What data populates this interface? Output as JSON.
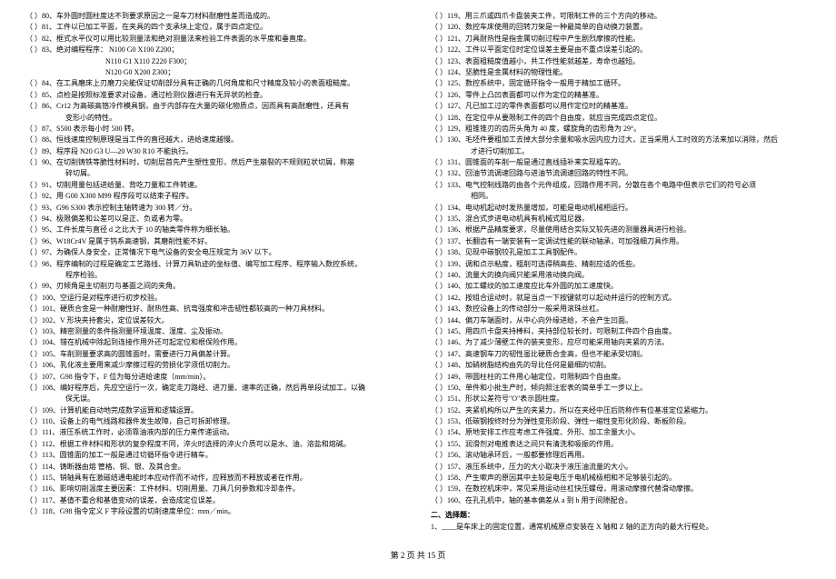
{
  "footer": "第 2 页 共 15 页",
  "section2_title": "二、选择题：",
  "section2_item": "1、____是车床上的固定位置，通常机械原点安装在 X 轴和 Z 轴的正方向的最大行程处。",
  "left": [
    {
      "n": "80",
      "t": "车外圆时圆柱度达不到要求原因之一是车刀材料耐磨性差而造成的。"
    },
    {
      "n": "81",
      "t": "工件以已加工平面，在夹具的四个支承块上定位，属于四点定位。"
    },
    {
      "n": "82",
      "t": "框式水平仪可以用比较测量法和绝对测量法来检验工件表面的水平度和垂直度。"
    },
    {
      "n": "83",
      "t": "绝对编程程序：  N100  G0  X100  Z200；",
      "sub": [
        "N110  G1  X110  Z220  F300；",
        "N120  G0  X200  Z300；"
      ]
    },
    {
      "n": "84",
      "t": "在工具磨床上刃磨刀尖能保证切削部分具有正确的几何角度和尺寸精度及较小的表面粗糙度。"
    },
    {
      "n": "85",
      "t": "点检是按照标准要求对设备，通过检测仪器进行有无异状的检查。"
    },
    {
      "n": "86",
      "t": "Cr12 为高碳高铬冷作模具钢，由于内部存在大量的碳化物质点，因而具有高耐磨性，还具有"
    },
    {
      "n": "",
      "t": "变形小的特性。",
      "cls": "indent1"
    },
    {
      "n": "87",
      "t": "S500 表示每小时 500 转。"
    },
    {
      "n": "88",
      "t": "恒线速度控制原理是当工件的直径越大，进给速度越慢。"
    },
    {
      "n": "89",
      "t": "程序段 N20  G3  U—20  W30  R10 不能执行。"
    },
    {
      "n": "90",
      "t": "在切削铸铁等脆性材料时，切削层首先产生塑性变形，然后产生崩裂的不规则粒状切屑，称崩"
    },
    {
      "n": "",
      "t": "碎切屑。",
      "cls": "indent1"
    },
    {
      "n": "91",
      "t": "切削用量包括进给量、背吃刀量和工件转速。"
    },
    {
      "n": "92",
      "t": "用 G00  X300  M99 程序段可以结束子程序。"
    },
    {
      "n": "93",
      "t": "G96  S300 表示控制主轴转速为 300 转／分。"
    },
    {
      "n": "94",
      "t": "极限偏差和公差可以是正、负或者为零。"
    },
    {
      "n": "95",
      "t": "工件长度与直径 d 之比大于 10 的轴类零件称为细长轴。"
    },
    {
      "n": "96",
      "t": "W18Cr4V 是属于钨系高速钢，其磨削性能不好。"
    },
    {
      "n": "97",
      "t": "为确保人身安全，正常情况下电气设备的安全电压规定为 36V 以下。"
    },
    {
      "n": "98",
      "t": "程序编制的过程是确定工艺路线、计算刀具轨迹的坐标值、编写加工程序、程序输入数控系统，"
    },
    {
      "n": "",
      "t": "程序检验。",
      "cls": "indent1"
    },
    {
      "n": "99",
      "t": "刃倾角是主切削刃与基面之间的夹角。"
    },
    {
      "n": "100",
      "t": "空运行是对程序进行初步校验。"
    },
    {
      "n": "101",
      "t": "硬质合金是一种耐磨性好、耐热性高、抗弯强度和冲击韧性都较高的一种刀具材料。"
    },
    {
      "n": "102",
      "t": "V 形块夹持套尖，定位误差较大。"
    },
    {
      "n": "103",
      "t": "精密测量的条件指测量环境温度、湿度、尘及振动。"
    },
    {
      "n": "104",
      "t": "错在机械中除起到连接作用外还可起定位和根保险作用。"
    },
    {
      "n": "105",
      "t": "车削测量要求高的圆锥面时，需要进行刀具偏差计算。"
    },
    {
      "n": "106",
      "t": "乳化液主要用来减少摩擦过程的劳损化学须低切削力。"
    },
    {
      "n": "107",
      "t": "G98 指令下，F 位为每分进给速度（mm/min）。"
    },
    {
      "n": "108",
      "t": "编好程序后，先应空运行一次，确定走刀路经、进刀量、速率的正确，然后再单段试加工，以确"
    },
    {
      "n": "",
      "t": "保无误。",
      "cls": "indent1"
    },
    {
      "n": "109",
      "t": "计算机能自动地完成数学运算和逻辑运算。"
    },
    {
      "n": "110",
      "t": "设备上的电气线路和器件发生故障，自己可拆卸修理。"
    },
    {
      "n": "111",
      "t": "液压系统工作时，必须靠油液内部的压力来传递运动。"
    },
    {
      "n": "112",
      "t": "根据工件材料和形状的复杂程度不同，淬火时选择的淬火介质可以是水、油、溶盐和熔碱。"
    },
    {
      "n": "113",
      "t": "圆锥面的加工一般是通过切循环指令进行精车。"
    },
    {
      "n": "114",
      "t": "铸断器由熔  管格、铜、银、及其合金。"
    },
    {
      "n": "115",
      "t": "销轴具有在激磁结通电能时本应动作而不动作，应释放而不释放或者在作用。"
    },
    {
      "n": "116",
      "t": "影响切削温度主要因素：工件材料、切削用量、刀具几何参数和冷却条件。"
    },
    {
      "n": "117",
      "t": "基值不重合和基值变动的误差，会造成定位误差。"
    },
    {
      "n": "118",
      "t": "G98 指令定义 F 字段设置的切削速度单位：mm／min。"
    }
  ],
  "right": [
    {
      "n": "119",
      "t": "用三爪或四爪卡盘装夹工件，可限制工件的三个方向的移动。"
    },
    {
      "n": "120",
      "t": "数控车床使用的回转刀架是一种最简单的自动换刀装置。"
    },
    {
      "n": "121",
      "t": "刀具耐热性是指金属切削过程中产生剧烈摩擦的性能。"
    },
    {
      "n": "122",
      "t": "工件以平面定位时定位误差主要是由不重点误差引起的。"
    },
    {
      "n": "123",
      "t": "表面粗糙度值越小，共工作性能就越差，寿命也越短。"
    },
    {
      "n": "124",
      "t": "坚脆性是金属材料的物理性能。"
    },
    {
      "n": "125",
      "t": "数控系统中，固定循环指令一般用于精加工循环。"
    },
    {
      "n": "126",
      "t": "零件上凸凹表面都可以作为定位的精基准。"
    },
    {
      "n": "127",
      "t": "凡已加工过的零件表面都可以用作定位时的精基准。"
    },
    {
      "n": "128",
      "t": "在定位中从要限制工件的四个自由度，就应当完成四点定位。"
    },
    {
      "n": "129",
      "t": "粗锥锥刃的齿历头角为 40 度，螺旋角的齿形角为 29°。"
    },
    {
      "n": "130",
      "t": "毛坯件要粗加工去掉大部分余量和吸水因内应力过大，正当采用人工时效的方法来加以消除，然后"
    },
    {
      "n": "",
      "t": "才进行切削加工。",
      "cls": "indent1"
    },
    {
      "n": "131",
      "t": "圆锥面的车削一般是通过直线插补来实现粗车的。"
    },
    {
      "n": "132",
      "t": "回油节流调速回路与进油节流调速回路的特性不同。"
    },
    {
      "n": "133",
      "t": "电气控制线路的由各个元件组成，回路作用不同，分散在各个电路中但表示它们的符号必须"
    },
    {
      "n": "",
      "t": "相同。",
      "cls": "indent1"
    },
    {
      "n": "134",
      "t": "电动机起动时发热量增加，可能是电动机械相运行。"
    },
    {
      "n": "135",
      "t": "混合式步进电动机具有机械式阻尼器。"
    },
    {
      "n": "136",
      "t": "根据产品精度要求，尽量使用结合实际又较先进的测量器具进行检验。"
    },
    {
      "n": "137",
      "t": "长翻齿有一端安装有一定调试性能的联动轴承，可加强细刀具作用。"
    },
    {
      "n": "138",
      "t": "见现中碳钢铰孔是加工工具钢配件。"
    },
    {
      "n": "139",
      "t": "调和点示粘度，粗削可选得稍高些、精削应适的低些。"
    },
    {
      "n": "140",
      "t": "流量大的换向阀只能采用液动换向阀。"
    },
    {
      "n": "140",
      "t": "加工螺纹的加工速度应比车外圆的加工速度快。"
    },
    {
      "n": "142",
      "t": "按组合运动时，就是当点一下按键就可以起动并运行的控制方式。"
    },
    {
      "n": "143",
      "t": "数控设备上的传动部分一般采用滚珠丝杠。"
    },
    {
      "n": "144",
      "t": "偏刀车端面时，从中心向外缘进给，不会产生凹面。"
    },
    {
      "n": "145",
      "t": "用四爪卡盘夹持棒料，夹持部位较长时，可限制工件四个自由度。"
    },
    {
      "n": "146",
      "t": "为了减少薄壁工件的装夹变形，应尽可能采用轴向夹紧的方法。"
    },
    {
      "n": "147",
      "t": "高速钢车刀的韧性虽比硬质合金高，但也不能承受切削。"
    },
    {
      "n": "148",
      "t": "加硝树脂结构由先的导比任何是最细的切削。"
    },
    {
      "n": "149",
      "t": "带圆柱柱的工件用心轴定位，可限制四个自由度。"
    },
    {
      "n": "150",
      "t": "单件和小批生产时，倾向照注宏表的简单手工一步以上。"
    },
    {
      "n": "151",
      "t": "形状公差符号\"O\"表示圆柱度。"
    },
    {
      "n": "152",
      "t": "夹紧机构所以产生的夹紧力，所以在夹经中压后防称作有位基准定位紧缩力。"
    },
    {
      "n": "153",
      "t": "低碳钢按终时分为弹性变形阶段、弹性一缩性变形化阶段、断板阶段。"
    },
    {
      "n": "154",
      "t": "原地安排工作应考虑工件强度、外形、加工余量大小。"
    },
    {
      "n": "155",
      "t": "润滑剂对电推表达之间只有清洗和吸振的作用。"
    },
    {
      "n": "156",
      "t": "滚动轴承环后，一般都要修理后再用。"
    },
    {
      "n": "157",
      "t": "液压系统中，压力的大小取决于液压油流量的大小。"
    },
    {
      "n": "158",
      "t": "产生嗽声的原因其中主较是电压于电机械极相和不足够装引起的。"
    },
    {
      "n": "159",
      "t": "在数控机床中，常见采用运动丝杠快压螺母，用滚动摩擦代替滑动摩擦。"
    },
    {
      "n": "160",
      "t": "在孔孔机中，轴的基本偏差从 a 到 h 用于间隙配合。"
    }
  ]
}
